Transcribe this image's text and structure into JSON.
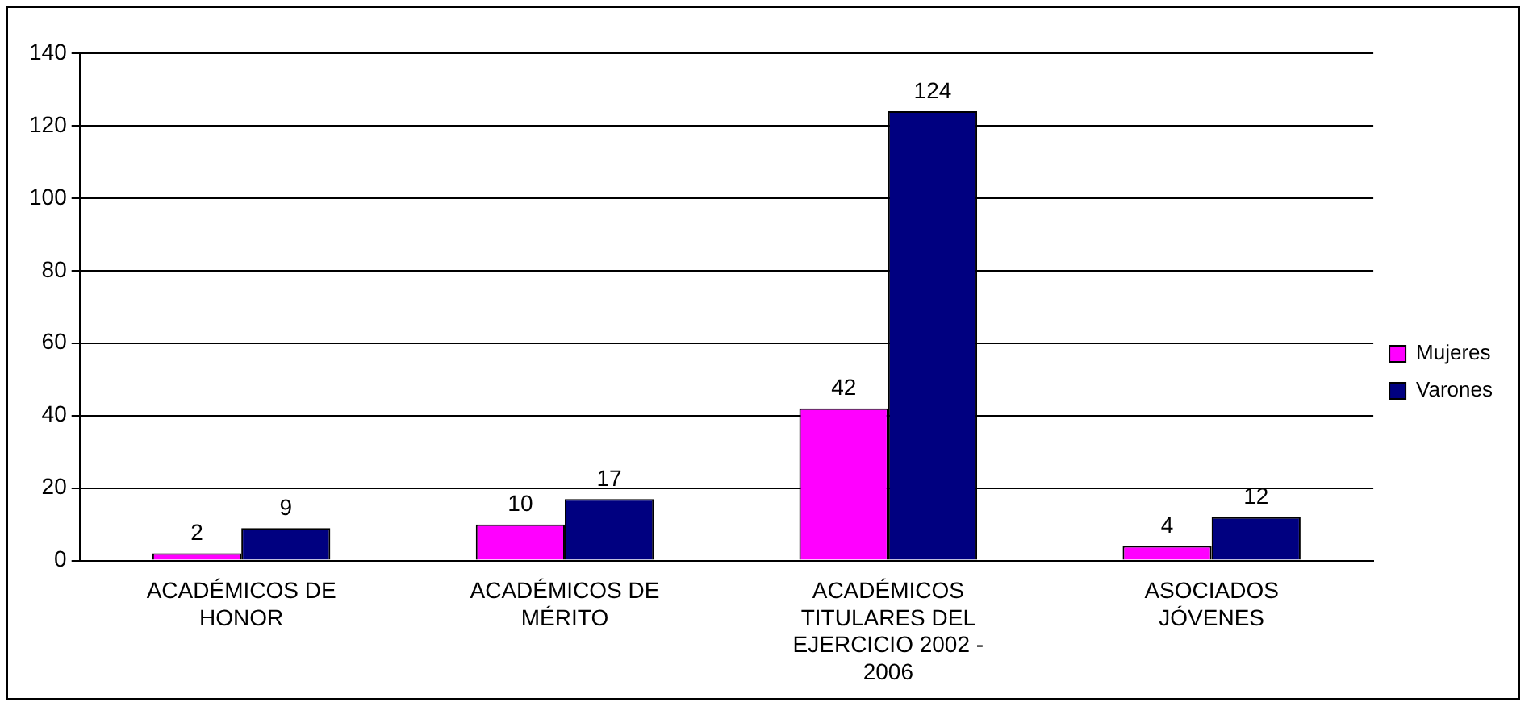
{
  "chart_data": {
    "type": "bar",
    "categories": [
      "ACADÉMICOS DE HONOR",
      "ACADÉMICOS DE MÉRITO",
      "ACADÉMICOS TITULARES DEL EJERCICIO 2002 - 2006",
      "ASOCIADOS JÓVENES"
    ],
    "series": [
      {
        "name": "Mujeres",
        "color": "#ff00ff",
        "values": [
          2,
          10,
          42,
          4
        ]
      },
      {
        "name": "Varones",
        "color": "#000080",
        "values": [
          9,
          17,
          124,
          12
        ]
      }
    ],
    "ylim": [
      0,
      140
    ],
    "yticks": [
      0,
      20,
      40,
      60,
      80,
      100,
      120,
      140
    ],
    "grid": "y",
    "legend": "right",
    "data_labels": true
  }
}
